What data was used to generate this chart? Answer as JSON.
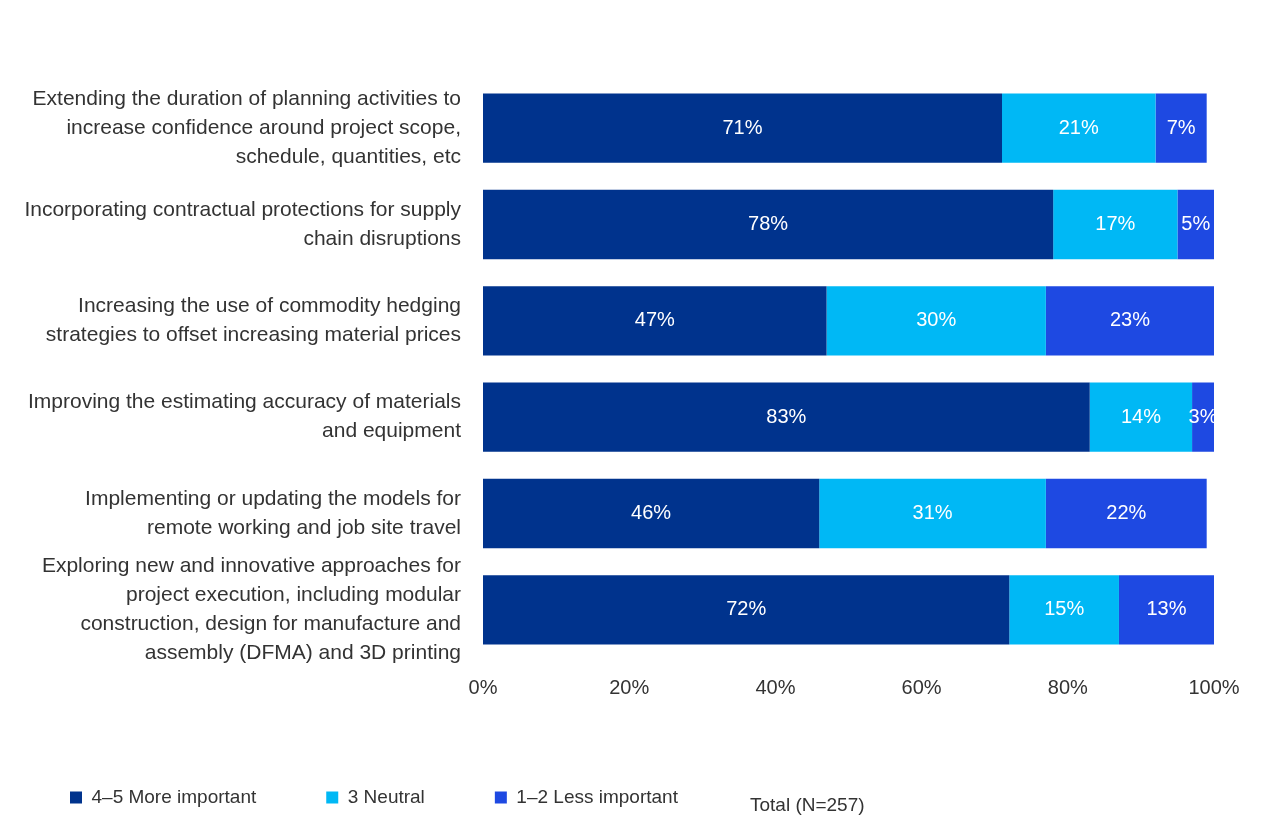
{
  "chart_data": {
    "type": "bar",
    "orientation": "horizontal",
    "stacked": true,
    "categories": [
      "Extending the duration of planning activities to increase confidence around project scope, schedule, quantities, etc",
      "Incorporating contractual protections for supply chain disruptions",
      "Increasing the use of commodity hedging strategies to offset increasing material prices",
      "Improving the estimating accuracy of materials and equipment",
      "Implementing or updating the models for remote working and job site travel",
      "Exploring new and innovative approaches for project execution, including modular construction, design for manufacture and assembly (DFMA) and 3D printing"
    ],
    "series": [
      {
        "name": "4–5 More important",
        "color": "#00338d",
        "values": [
          71,
          78,
          47,
          83,
          46,
          72
        ],
        "value_labels": [
          "71%",
          "78%",
          "47%",
          "83%",
          "46%",
          "72%"
        ]
      },
      {
        "name": "3 Neutral",
        "color": "#00b8f5",
        "values": [
          21,
          17,
          30,
          14,
          31,
          15
        ],
        "value_labels": [
          "21%",
          "17%",
          "30%",
          "14%",
          "31%",
          "15%"
        ]
      },
      {
        "name": "1–2 Less important",
        "color": "#1e49e2",
        "values": [
          7,
          5,
          23,
          3,
          22,
          13
        ],
        "value_labels": [
          "7%",
          "5%",
          "23%",
          "3%",
          "22%",
          "13%"
        ]
      }
    ],
    "xlim": [
      0,
      100
    ],
    "xticks": [
      {
        "value": 0,
        "label": "0%"
      },
      {
        "value": 20,
        "label": "20%"
      },
      {
        "value": 40,
        "label": "40%"
      },
      {
        "value": 60,
        "label": "60%"
      },
      {
        "value": 80,
        "label": "80%"
      },
      {
        "value": 100,
        "label": "100%"
      }
    ],
    "grid": false,
    "legend": "bottom left",
    "annotations": [
      "Total (N=257)"
    ]
  }
}
